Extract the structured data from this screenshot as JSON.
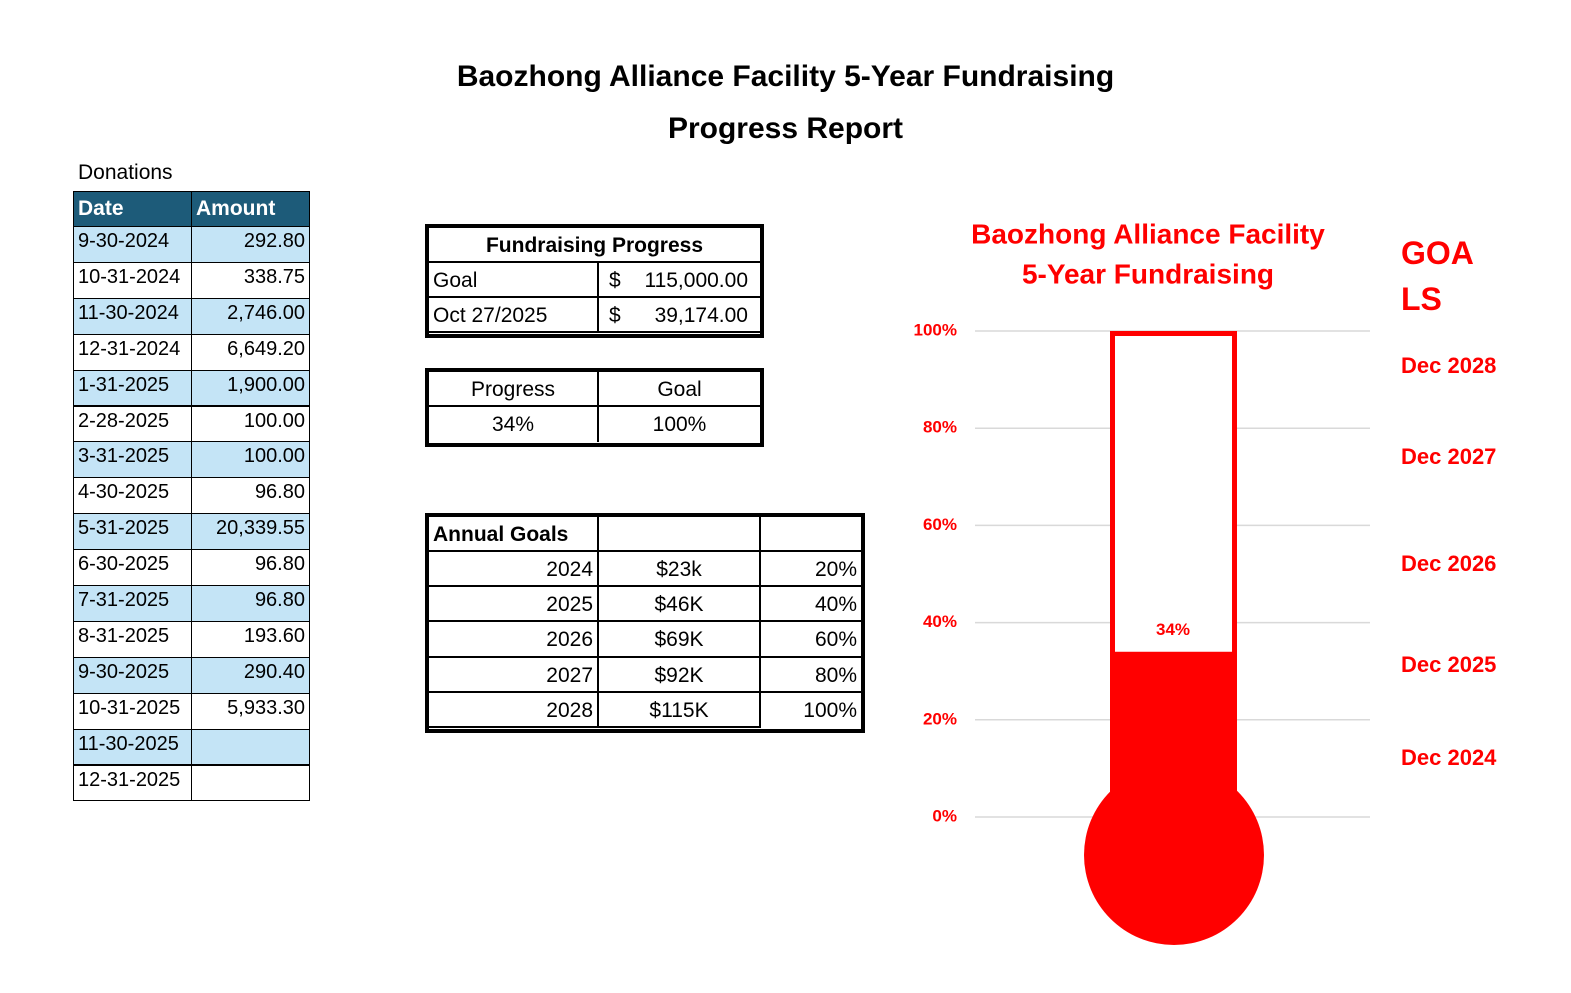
{
  "header": {
    "title_lines": [
      "Baozhong Alliance Facility    5-Year Fundraising",
      "Progress Report"
    ]
  },
  "donations": {
    "caption": "Donations",
    "columns": [
      "Date",
      "Amount"
    ],
    "rows": [
      [
        "9-30-2024",
        "292.80"
      ],
      [
        "10-31-2024",
        "338.75"
      ],
      [
        "11-30-2024",
        "2,746.00"
      ],
      [
        "12-31-2024",
        "6,649.20"
      ],
      [
        "1-31-2025",
        "1,900.00"
      ],
      [
        "2-28-2025",
        "100.00"
      ],
      [
        "3-31-2025",
        "100.00"
      ],
      [
        "4-30-2025",
        "96.80"
      ],
      [
        "5-31-2025",
        "20,339.55"
      ],
      [
        "6-30-2025",
        "96.80"
      ],
      [
        "7-31-2025",
        "96.80"
      ],
      [
        "8-31-2025",
        "193.60"
      ],
      [
        "9-30-2025",
        "290.40"
      ],
      [
        "10-31-2025",
        "5,933.30"
      ],
      [
        "11-30-2025",
        null
      ],
      [
        "12-31-2025",
        null
      ]
    ]
  },
  "fundraising_progress": {
    "title": "Fundraising Progress",
    "rows": [
      [
        "Goal",
        "$",
        "115,000.00"
      ],
      [
        "Oct 27/2025",
        "$",
        "39,174.00"
      ]
    ]
  },
  "progress": {
    "columns": [
      "Progress",
      "Goal"
    ],
    "row": [
      "34%",
      "100%"
    ]
  },
  "annual_goals": {
    "title": "Annual Goals",
    "rows": [
      [
        "2024",
        "$23k",
        "20%"
      ],
      [
        "2025",
        "$46K",
        "40%"
      ],
      [
        "2026",
        "$69K",
        "60%"
      ],
      [
        "2027",
        "$92K",
        "80%"
      ],
      [
        "2028",
        "$115K",
        "100%"
      ]
    ]
  },
  "chart_data": {
    "type": "thermometer",
    "title_lines": [
      "Baozhong Alliance Facility",
      "5-Year Fundraising"
    ],
    "values": [
      34
    ],
    "value_labels": [
      "34%"
    ],
    "color": "#ff0000",
    "ylim": [
      0,
      100
    ],
    "yticks": [
      {
        "value": 0,
        "label": "0%"
      },
      {
        "value": 20,
        "label": "20%"
      },
      {
        "value": 40,
        "label": "40%"
      },
      {
        "value": 60,
        "label": "60%"
      },
      {
        "value": 80,
        "label": "80%"
      },
      {
        "value": 100,
        "label": "100%"
      }
    ],
    "grid": true,
    "goals_heading": "GOALS",
    "goal_labels": [
      "Dec 2028",
      "Dec 2027",
      "Dec 2026",
      "Dec 2025",
      "Dec 2024"
    ]
  }
}
